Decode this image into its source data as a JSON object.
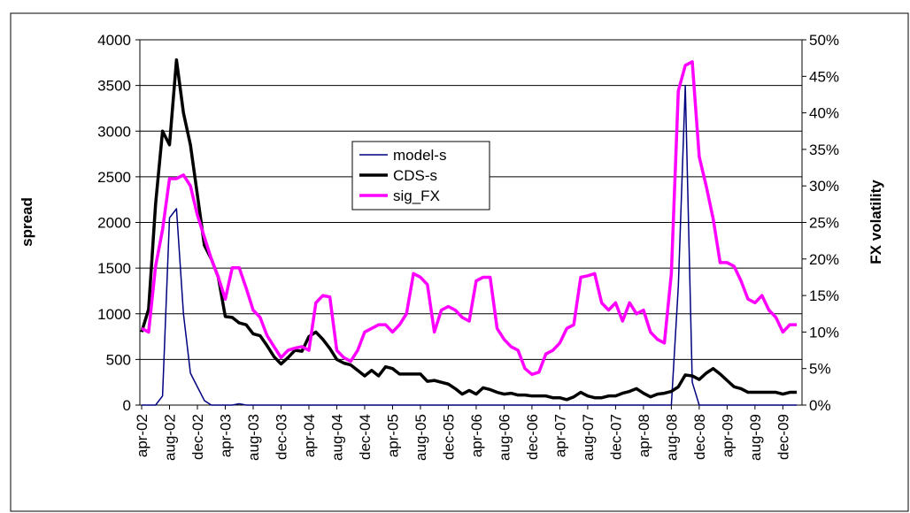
{
  "chart_data": {
    "type": "line",
    "y_label": "spread",
    "y2_label": "FX volatility",
    "categories": [
      "apr-02",
      null,
      null,
      null,
      "aug-02",
      null,
      null,
      null,
      "dec-02",
      null,
      null,
      null,
      "apr-03",
      null,
      null,
      null,
      "aug-03",
      null,
      null,
      null,
      "dec-03",
      null,
      null,
      null,
      "apr-04",
      null,
      null,
      null,
      "aug-04",
      null,
      null,
      null,
      "dec-04",
      null,
      null,
      null,
      "apr-05",
      null,
      null,
      null,
      "aug-05",
      null,
      null,
      null,
      "dec-05",
      null,
      null,
      null,
      "apr-06",
      null,
      null,
      null,
      "aug-06",
      null,
      null,
      null,
      "dec-06",
      null,
      null,
      null,
      "apr-07",
      null,
      null,
      null,
      "aug-07",
      null,
      null,
      null,
      "dec-07",
      null,
      null,
      null,
      "apr-08",
      null,
      null,
      null,
      "aug-08",
      null,
      null,
      null,
      "dec-08",
      null,
      null,
      null,
      "apr-09",
      null,
      null,
      null,
      "aug-09",
      null,
      null,
      null,
      "dec-09",
      null,
      null
    ],
    "series": [
      {
        "name": "model-s",
        "color": "#000080",
        "axis": "y",
        "values": [
          0,
          0,
          0,
          100,
          2050,
          2150,
          1000,
          350,
          200,
          50,
          0,
          0,
          0,
          0,
          15,
          0,
          0,
          0,
          0,
          0,
          0,
          0,
          0,
          0,
          0,
          0,
          0,
          0,
          0,
          0,
          0,
          0,
          0,
          0,
          0,
          0,
          0,
          0,
          0,
          0,
          0,
          0,
          0,
          0,
          0,
          0,
          0,
          0,
          0,
          0,
          0,
          0,
          0,
          0,
          0,
          0,
          0,
          0,
          0,
          0,
          0,
          0,
          0,
          0,
          0,
          0,
          0,
          0,
          0,
          0,
          0,
          0,
          0,
          0,
          0,
          0,
          0,
          1300,
          3500,
          250,
          0,
          0,
          0,
          0,
          0,
          0,
          0,
          0,
          0,
          0,
          0,
          0,
          0,
          0,
          0
        ]
      },
      {
        "name": "CDS-s",
        "color": "#000000",
        "axis": "y",
        "values": [
          800,
          1050,
          2200,
          3000,
          2850,
          3780,
          3200,
          2850,
          2300,
          1750,
          1600,
          1400,
          970,
          960,
          900,
          880,
          780,
          760,
          650,
          530,
          450,
          520,
          600,
          590,
          750,
          800,
          720,
          620,
          500,
          460,
          440,
          380,
          320,
          380,
          320,
          420,
          400,
          340,
          340,
          340,
          340,
          260,
          270,
          250,
          230,
          180,
          120,
          160,
          120,
          190,
          170,
          140,
          120,
          130,
          110,
          110,
          100,
          100,
          100,
          80,
          80,
          60,
          90,
          140,
          100,
          80,
          80,
          100,
          100,
          130,
          150,
          180,
          130,
          90,
          120,
          130,
          150,
          200,
          330,
          320,
          280,
          350,
          400,
          340,
          270,
          200,
          180,
          140,
          140,
          140,
          140,
          140,
          120,
          140,
          140
        ]
      },
      {
        "name": "sig_FX",
        "color": "#ff00ff",
        "axis": "y2",
        "values": [
          10.5,
          10,
          19,
          24,
          31,
          31,
          31.5,
          30,
          26,
          23,
          20,
          17.5,
          14.5,
          18.8,
          18.8,
          16,
          13,
          12,
          9.5,
          8,
          6.5,
          7.5,
          7.8,
          8,
          7.5,
          14,
          15,
          14.8,
          7.5,
          6.5,
          6,
          7.5,
          10,
          10.5,
          11,
          11,
          10,
          11,
          12.5,
          18,
          17.5,
          16.5,
          10,
          13,
          13.5,
          13,
          12,
          11.5,
          17,
          17.5,
          17.5,
          10.5,
          9,
          8,
          7.5,
          5,
          4.2,
          4.5,
          7,
          7.5,
          8.5,
          10.5,
          11,
          17.5,
          17.7,
          18,
          14,
          13,
          14,
          11.5,
          14,
          12.5,
          13,
          10,
          9,
          8.5,
          18,
          43,
          46.5,
          47,
          34,
          30,
          25.5,
          19.5,
          19.5,
          19,
          17,
          14.5,
          14,
          15,
          13,
          12,
          10,
          11,
          11
        ]
      }
    ],
    "ylim": [
      0,
      4000
    ],
    "yticks": [
      0,
      500,
      1000,
      1500,
      2000,
      2500,
      3000,
      3500,
      4000
    ],
    "y2lim": [
      0,
      50
    ],
    "y2ticks": [
      {
        "value": 0,
        "label": "0%"
      },
      {
        "value": 5,
        "label": "5%"
      },
      {
        "value": 10,
        "label": "10%"
      },
      {
        "value": 15,
        "label": "15%"
      },
      {
        "value": 20,
        "label": "20%"
      },
      {
        "value": 25,
        "label": "25%"
      },
      {
        "value": 30,
        "label": "30%"
      },
      {
        "value": 35,
        "label": "35%"
      },
      {
        "value": 40,
        "label": "40%"
      },
      {
        "value": 45,
        "label": "45%"
      },
      {
        "value": 50,
        "label": "50%"
      }
    ],
    "grid": true
  }
}
